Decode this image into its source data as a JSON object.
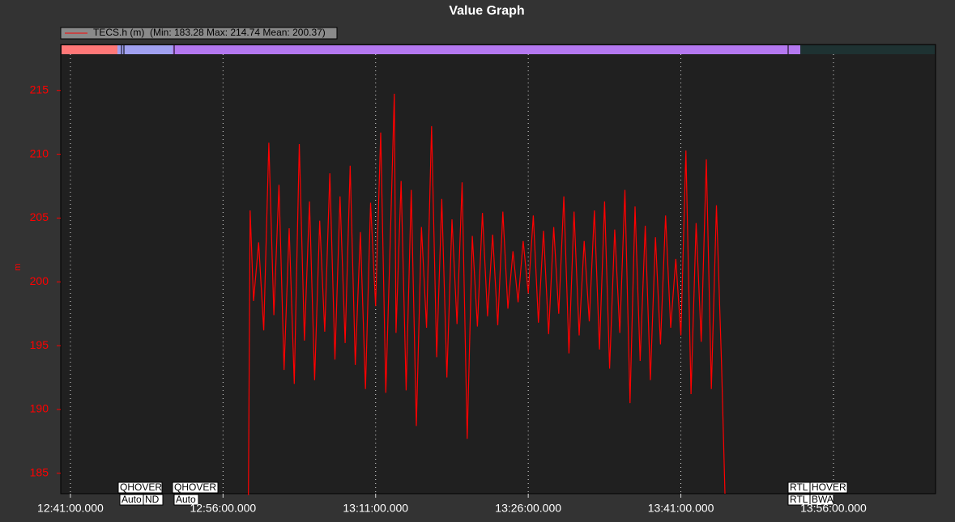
{
  "chart_data": {
    "type": "line",
    "title": "Value Graph",
    "ylabel": "m",
    "legend_stats": "(Min: 183.28 Max: 214.74 Mean: 200.37)",
    "mode_labels": [
      "QHOVER",
      "Auto",
      "ND",
      "QHOVER",
      "Auto",
      "RTL",
      "HOVER",
      "RTL",
      "BWA"
    ],
    "xlim": [
      "12:40:03",
      "14:06:02"
    ],
    "xticks": [
      "12:41:00.000",
      "12:56:00.000",
      "13:11:00.000",
      "13:26:00.000",
      "13:41:00.000",
      "13:56:00.000"
    ],
    "ylim": [
      183.4,
      218.6
    ],
    "yticks": [
      185,
      190,
      195,
      200,
      205,
      210,
      215
    ],
    "grid": true,
    "x": [
      "12:58:30",
      "12:58:40",
      "12:59:00",
      "12:59:30",
      "13:00:00",
      "13:00:30",
      "13:01:00",
      "13:01:30",
      "13:02:00",
      "13:02:30",
      "13:03:00",
      "13:03:30",
      "13:04:00",
      "13:04:30",
      "13:05:00",
      "13:05:30",
      "13:06:00",
      "13:06:30",
      "13:07:00",
      "13:07:30",
      "13:08:00",
      "13:08:30",
      "13:09:00",
      "13:09:30",
      "13:10:00",
      "13:10:30",
      "13:11:00",
      "13:11:30",
      "13:12:00",
      "13:12:30",
      "13:12:50",
      "13:13:00",
      "13:13:30",
      "13:14:00",
      "13:14:30",
      "13:15:00",
      "13:15:30",
      "13:16:00",
      "13:16:30",
      "13:17:00",
      "13:17:30",
      "13:18:00",
      "13:18:30",
      "13:19:00",
      "13:19:30",
      "13:20:00",
      "13:20:30",
      "13:21:00",
      "13:21:30",
      "13:22:00",
      "13:22:30",
      "13:23:00",
      "13:23:30",
      "13:24:00",
      "13:24:30",
      "13:25:00",
      "13:25:30",
      "13:26:00",
      "13:26:30",
      "13:27:00",
      "13:27:30",
      "13:28:00",
      "13:28:30",
      "13:29:00",
      "13:29:30",
      "13:30:00",
      "13:30:30",
      "13:31:00",
      "13:31:30",
      "13:32:00",
      "13:32:30",
      "13:33:00",
      "13:33:30",
      "13:34:00",
      "13:34:30",
      "13:35:00",
      "13:35:30",
      "13:36:00",
      "13:36:30",
      "13:37:00",
      "13:37:30",
      "13:38:00",
      "13:38:30",
      "13:39:00",
      "13:39:30",
      "13:40:00",
      "13:40:30",
      "13:41:00",
      "13:41:30",
      "13:42:00",
      "13:42:30",
      "13:43:00",
      "13:43:30",
      "13:44:00",
      "13:44:30",
      "13:45:00",
      "13:45:20"
    ],
    "series": [
      {
        "name": "TECS.h (m)",
        "color": "#ff0000",
        "values": [
          183.28,
          205.6,
          198.5,
          203.1,
          196.2,
          210.9,
          197.4,
          207.6,
          193.1,
          204.2,
          192.0,
          210.8,
          195.4,
          206.3,
          192.3,
          204.8,
          196.1,
          208.5,
          193.9,
          206.7,
          195.2,
          209.1,
          193.5,
          203.9,
          191.6,
          206.2,
          198.1,
          211.7,
          191.3,
          205.0,
          214.74,
          196.0,
          207.9,
          191.5,
          207.2,
          188.7,
          204.3,
          196.4,
          212.2,
          194.1,
          206.5,
          192.5,
          204.9,
          196.7,
          207.8,
          187.7,
          203.6,
          196.5,
          205.4,
          197.3,
          203.7,
          196.6,
          205.5,
          197.9,
          202.4,
          198.4,
          203.2,
          199.1,
          205.2,
          196.8,
          204.0,
          195.9,
          204.3,
          197.5,
          206.7,
          194.4,
          205.5,
          195.8,
          203.2,
          196.9,
          205.6,
          194.7,
          206.3,
          193.2,
          204.1,
          196.0,
          207.2,
          190.5,
          205.9,
          193.8,
          204.4,
          192.3,
          203.5,
          195.1,
          205.2,
          196.4,
          201.8,
          195.8,
          210.3,
          191.2,
          204.6,
          195.3,
          209.6,
          191.6,
          206.0,
          193.5,
          183.4
        ]
      }
    ]
  }
}
